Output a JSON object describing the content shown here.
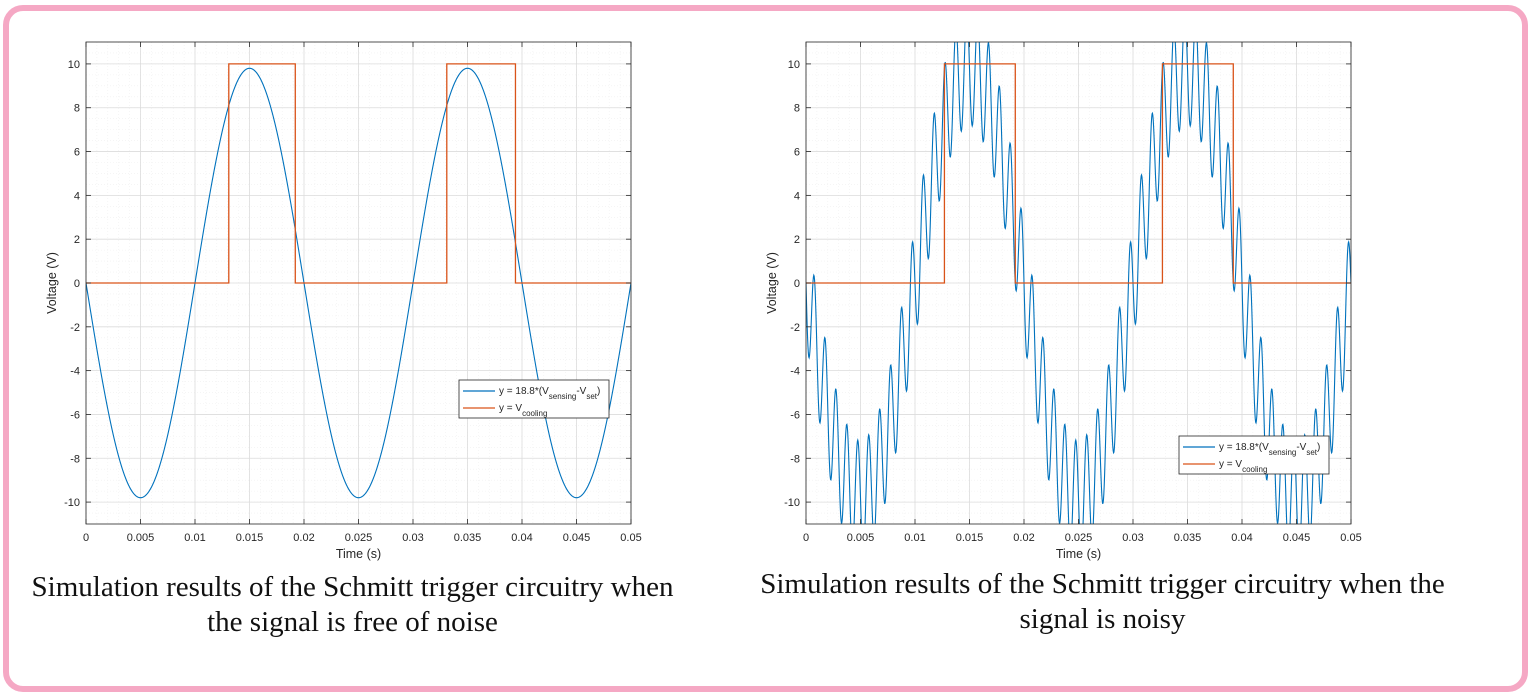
{
  "colors": {
    "frame_border": "#f5a8c4",
    "series_sensing": "#0072BD",
    "series_cooling": "#D95319",
    "grid_major": "#dcdcdc",
    "grid_minor": "#efefef"
  },
  "figures": [
    {
      "caption": "Simulation results of the Schmitt trigger circuitry when the signal is free of noise"
    },
    {
      "caption": "Simulation results of the Schmitt trigger circuitry when the signal is noisy"
    }
  ],
  "chart_data": [
    {
      "type": "line",
      "title": "",
      "xlabel": "Time (s)",
      "ylabel": "Voltage (V)",
      "xlim": [
        0,
        0.05
      ],
      "ylim": [
        -11,
        11
      ],
      "xticks": [
        0,
        0.005,
        0.01,
        0.015,
        0.02,
        0.025,
        0.03,
        0.035,
        0.04,
        0.045,
        0.05
      ],
      "xtick_labels": [
        "0",
        "0.005",
        "0.01",
        "0.015",
        "0.02",
        "0.025",
        "0.03",
        "0.035",
        "0.04",
        "0.045",
        "0.05"
      ],
      "yticks": [
        -10,
        -8,
        -6,
        -4,
        -2,
        0,
        2,
        4,
        6,
        8,
        10
      ],
      "ytick_labels": [
        "-10",
        "-8",
        "-6",
        "-4",
        "-2",
        "0",
        "2",
        "4",
        "6",
        "8",
        "10"
      ],
      "grid": true,
      "minor_grid": true,
      "legend_position": "lower-right",
      "series": [
        {
          "name": "y = 18.8*(V_sensing - V_set)",
          "legend_main": "y = 18.8*(V",
          "legend_sub1": "sensing",
          "legend_mid": "-V",
          "legend_sub2": "set",
          "legend_end": ")",
          "color": "#0072BD",
          "kind": "sine",
          "amplitude": 9.8,
          "period": 0.02,
          "phase_sign": -1,
          "noise_amplitude": 0,
          "noise_period": 0.001
        },
        {
          "name": "y = V_cooling",
          "legend_main": "y = V",
          "legend_sub1": "cooling",
          "color": "#D95319",
          "kind": "step",
          "x": [
            0,
            0.0131,
            0.0131,
            0.0192,
            0.0192,
            0.0331,
            0.0331,
            0.0394,
            0.0394,
            0.05
          ],
          "y": [
            0,
            0,
            10,
            10,
            0,
            0,
            10,
            10,
            0,
            0
          ]
        }
      ]
    },
    {
      "type": "line",
      "title": "",
      "xlabel": "Time (s)",
      "ylabel": "Voltage (V)",
      "xlim": [
        0,
        0.05
      ],
      "ylim": [
        -11,
        11
      ],
      "xticks": [
        0,
        0.005,
        0.01,
        0.015,
        0.02,
        0.025,
        0.03,
        0.035,
        0.04,
        0.045,
        0.05
      ],
      "xtick_labels": [
        "0",
        "0.005",
        "0.01",
        "0.015",
        "0.02",
        "0.025",
        "0.03",
        "0.035",
        "0.04",
        "0.045",
        "0.05"
      ],
      "yticks": [
        -10,
        -8,
        -6,
        -4,
        -2,
        0,
        2,
        4,
        6,
        8,
        10
      ],
      "ytick_labels": [
        "-10",
        "-8",
        "-6",
        "-4",
        "-2",
        "0",
        "2",
        "4",
        "6",
        "8",
        "10"
      ],
      "grid": true,
      "minor_grid": true,
      "legend_position": "lower-right",
      "series": [
        {
          "name": "y = 18.8*(V_sensing - V_set)",
          "legend_main": "y = 18.8*(V",
          "legend_sub1": "sensing",
          "legend_mid": "-V",
          "legend_sub2": "set",
          "legend_end": ")",
          "color": "#0072BD",
          "kind": "sine",
          "amplitude": 9.8,
          "period": 0.02,
          "phase_sign": -1,
          "noise_amplitude": 2.6,
          "noise_period": 0.001
        },
        {
          "name": "y = V_cooling",
          "legend_main": "y = V",
          "legend_sub1": "cooling",
          "color": "#D95319",
          "kind": "step",
          "x": [
            0,
            0.0127,
            0.0127,
            0.0192,
            0.0192,
            0.0327,
            0.0327,
            0.0392,
            0.0392,
            0.05
          ],
          "y": [
            0,
            0,
            10,
            10,
            0,
            0,
            10,
            10,
            0,
            0
          ]
        }
      ]
    }
  ]
}
